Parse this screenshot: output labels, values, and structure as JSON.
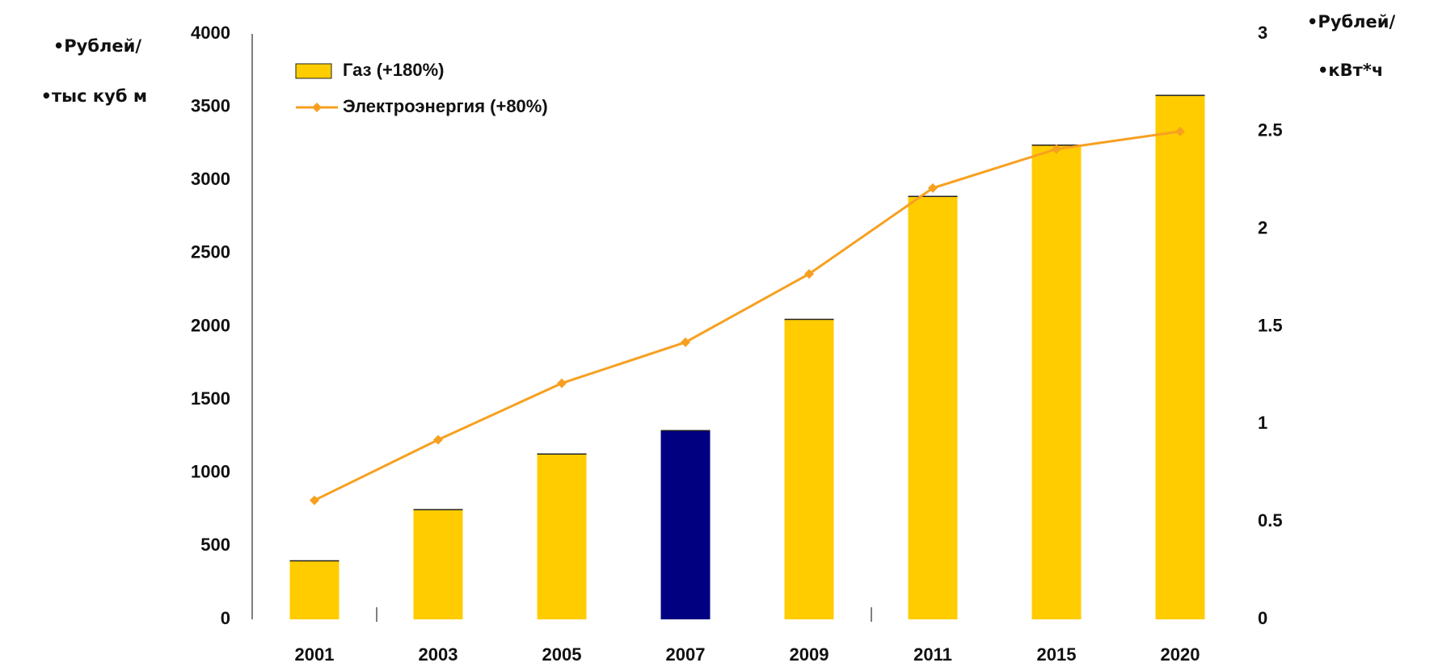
{
  "chart_data": {
    "type": "bar",
    "categories": [
      "2001",
      "2003",
      "2005",
      "2007",
      "2009",
      "2011",
      "2015",
      "2020"
    ],
    "series": [
      {
        "name": "Газ (+180%)",
        "color": "#ffcc00",
        "colors": [
          "#ffcc00",
          "#ffcc00",
          "#ffcc00",
          "#000080",
          "#ffcc00",
          "#ffcc00",
          "#ffcc00",
          "#ffcc00"
        ],
        "values": [
          400,
          750,
          1130,
          1290,
          2050,
          2890,
          3240,
          3580
        ]
      },
      {
        "name": "Электроэнергия (+80%)",
        "type": "line",
        "color": "#f7a020",
        "axis": "y2",
        "values": [
          0.61,
          0.92,
          1.21,
          1.42,
          1.77,
          2.21,
          2.41,
          2.5
        ]
      }
    ],
    "ylabel": [
      "•Рублей/",
      "•тыс куб м"
    ],
    "y2label": [
      "•Рублей/",
      "•кВт*ч"
    ],
    "ylim": [
      0,
      4000
    ],
    "yticks": [
      0,
      500,
      1000,
      1500,
      2000,
      2500,
      3000,
      3500,
      4000
    ],
    "y2lim": [
      0,
      3
    ],
    "y2ticks": [
      0,
      0.5,
      1,
      1.5,
      2,
      2.5,
      3
    ],
    "legend": "top-left"
  }
}
